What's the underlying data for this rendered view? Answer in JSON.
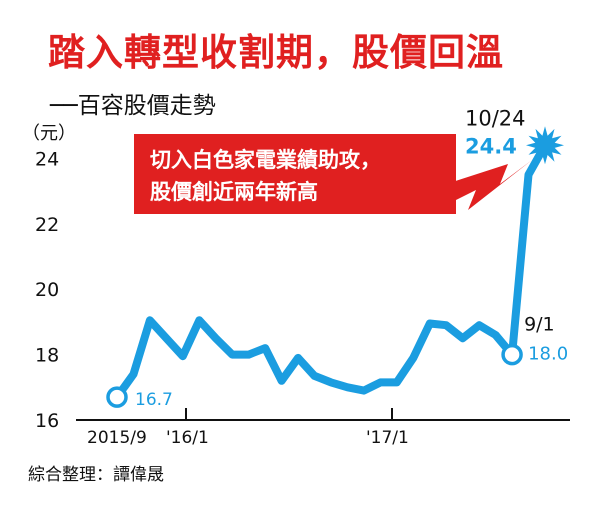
{
  "title": "踏入轉型收割期，股價回溫",
  "subtitle": "──百容股價走勢",
  "credit": "綜合整理：譚偉晟",
  "colors": {
    "accent": "#e02020",
    "line": "#1b9de0",
    "text": "#111111"
  },
  "chart_data": {
    "type": "line",
    "ylabel": "（元）",
    "ylim": [
      16,
      24.7
    ],
    "yticks": [
      16,
      18,
      20,
      22,
      24
    ],
    "xlabels": [
      "2015/9",
      "'16/1",
      "'17/1"
    ],
    "series": [
      {
        "values": [
          16.7,
          17.4,
          19.05,
          18.5,
          17.95,
          19.05,
          18.5,
          18.0,
          18.0,
          18.2,
          17.2,
          17.9,
          17.35,
          17.15,
          17.0,
          16.9,
          17.15,
          17.15,
          17.9,
          18.95,
          18.9,
          18.5,
          18.9,
          18.6,
          18.0,
          23.5,
          24.4
        ]
      }
    ],
    "annotations": {
      "start": {
        "label": "16.7",
        "value": 16.7
      },
      "mid": {
        "date": "9/1",
        "label": "18.0",
        "value": 18.0
      },
      "peak": {
        "date": "10/24",
        "label": "24.4",
        "value": 24.4
      },
      "callout": [
        "切入白色家電業績助攻，",
        "股價創近兩年新高"
      ]
    }
  }
}
